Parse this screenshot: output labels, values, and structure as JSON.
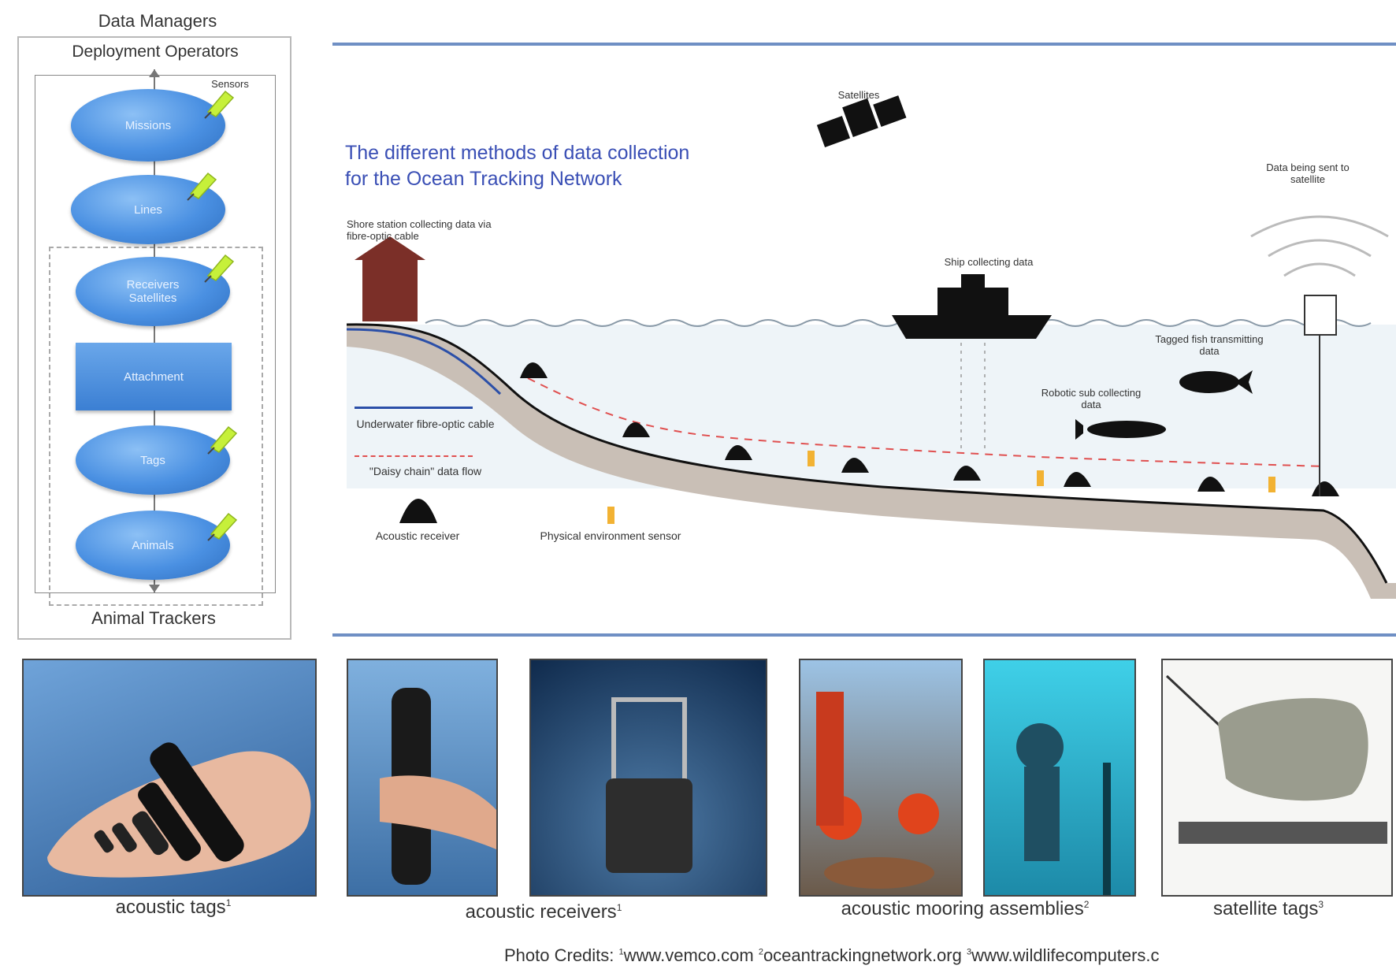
{
  "flow": {
    "top_label": "Data Managers",
    "box_label": "Deployment Operators",
    "sensors_label": "Sensors",
    "bottom_label": "Animal Trackers",
    "nodes": [
      {
        "label": "Missions"
      },
      {
        "label": "Lines"
      },
      {
        "label": "Receivers\nSatellites"
      },
      {
        "label": "Attachment"
      },
      {
        "label": "Tags"
      },
      {
        "label": "Animals"
      }
    ]
  },
  "diagram": {
    "title_line1": "The different methods of data collection",
    "title_line2": "for the Ocean Tracking Network",
    "satellites": "Satellites",
    "shore_station": "Shore station collecting data via fibre-optic cable",
    "ship": "Ship collecting data",
    "data_sent": "Data being sent to satellite",
    "tagged_fish": "Tagged fish transmitting data",
    "robotic_sub": "Robotic sub collecting data",
    "legend_cable": "Underwater fibre-optic cable",
    "legend_daisy": "\"Daisy chain\" data flow",
    "legend_receiver": "Acoustic receiver",
    "legend_sensor": "Physical environment sensor"
  },
  "photos": [
    {
      "caption": "acoustic tags",
      "sup": "1"
    },
    {
      "caption": "acoustic receivers",
      "sup": "1"
    },
    {
      "caption": "acoustic mooring assemblies",
      "sup": "2"
    },
    {
      "caption": "satellite tags",
      "sup": "3"
    }
  ],
  "credits": {
    "prefix": "Photo Credits: ",
    "c1": "www.vemco.com",
    "c2": "oceantrackingnetwork.org",
    "c3": "www.wildlifecomputers.c"
  },
  "colors": {
    "accent_line": "#6f8fc4",
    "title_blue": "#3a4fb5",
    "node_blue": "#4a90e2",
    "sensor_green": "#c6f03a",
    "seafloor": "#c9bfb6",
    "water": "#eef4f8",
    "house": "#7b2f28",
    "daisy_red": "#e05050",
    "sensor_orange": "#f2b233"
  },
  "icons": [
    "satellite-icon",
    "house-icon",
    "ship-icon",
    "fish-icon",
    "sub-icon",
    "buoy-icon",
    "signal-icon",
    "receiver-icon",
    "sensor-icon"
  ]
}
